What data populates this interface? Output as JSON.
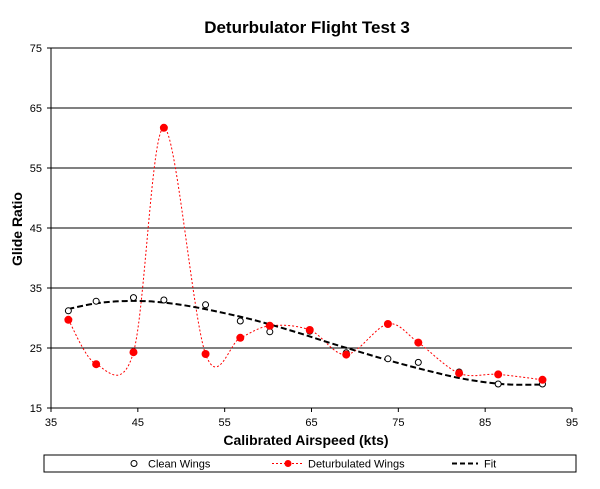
{
  "chart_data": {
    "type": "scatter",
    "title": "Deturbulator Flight Test 3",
    "xlabel": "Calibrated Airspeed  (kts)",
    "ylabel": "Glide Ratio",
    "xlim": [
      35,
      95
    ],
    "ylim": [
      15,
      75
    ],
    "xticks": [
      35,
      45,
      55,
      65,
      75,
      85,
      95
    ],
    "yticks": [
      15,
      25,
      35,
      45,
      55,
      65,
      75
    ],
    "xtick_labels": [
      "35",
      "45",
      "55",
      "65",
      "75",
      "85",
      "95"
    ],
    "ytick_labels": [
      "15",
      "25",
      "35",
      "45",
      "55",
      "65",
      "75"
    ],
    "grid": "horizontal",
    "legend_position": "bottom",
    "series": [
      {
        "name": "Clean Wings",
        "style": "open-circle-markers",
        "color": "#000000",
        "x": [
          37.0,
          40.2,
          44.5,
          48.0,
          52.8,
          56.8,
          60.2,
          64.8,
          69.0,
          73.8,
          77.3,
          82.0,
          86.5,
          91.6
        ],
        "y": [
          31.2,
          32.8,
          33.4,
          33.0,
          32.2,
          29.5,
          27.7,
          27.8,
          24.2,
          23.2,
          22.6,
          21.0,
          19.0,
          19.0
        ]
      },
      {
        "name": "Deturbulated Wings",
        "style": "filled-markers-dotted-spline",
        "color": "#ff0000",
        "x": [
          37.0,
          40.2,
          44.5,
          48.0,
          52.8,
          56.8,
          60.2,
          64.8,
          69.0,
          73.8,
          77.3,
          82.0,
          86.5,
          91.6
        ],
        "y": [
          29.7,
          22.3,
          24.3,
          61.7,
          24.0,
          26.7,
          28.7,
          28.0,
          23.9,
          29.0,
          25.9,
          20.8,
          20.6,
          19.7
        ]
      },
      {
        "name": "Fit",
        "style": "dashed-line",
        "color": "#000000",
        "x": [
          37,
          40,
          43,
          46,
          49,
          52,
          55,
          58,
          61,
          64,
          67,
          70,
          73,
          76,
          79,
          82,
          85,
          88,
          91.6
        ],
        "y": [
          31.5,
          32.4,
          32.8,
          32.8,
          32.4,
          31.7,
          30.8,
          29.8,
          28.6,
          27.3,
          25.9,
          24.6,
          23.3,
          22.1,
          21.0,
          20.0,
          19.3,
          18.9,
          18.9
        ]
      }
    ]
  },
  "colors": {
    "gridline": "#000000",
    "clean": "#000000",
    "deturbulated": "#ff0000",
    "fit": "#000000"
  }
}
